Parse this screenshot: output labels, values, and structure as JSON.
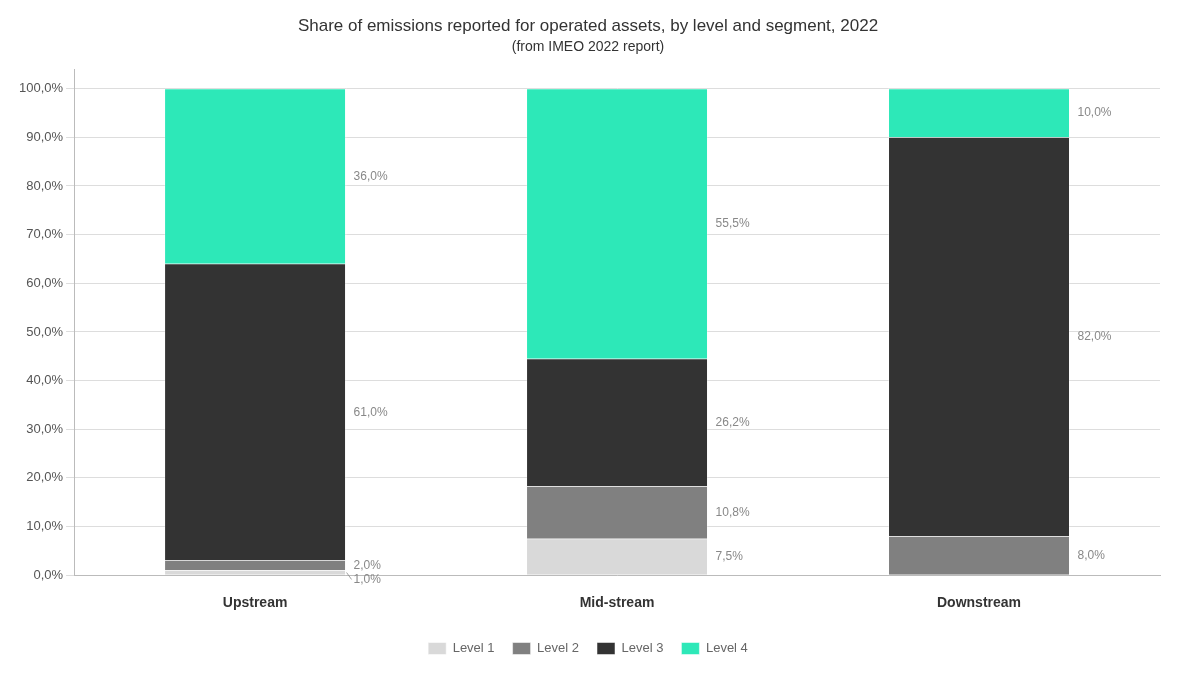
{
  "chart_data": {
    "type": "bar",
    "title": "Share of emissions reported for operated assets, by level and segment, 2022",
    "subtitle": "(from IMEO 2022 report)",
    "categories": [
      "Upstream",
      "Mid-stream",
      "Downstream"
    ],
    "stacked": true,
    "series": [
      {
        "name": "Level 1",
        "color": "#d9d9d9",
        "values": [
          1.0,
          7.5,
          0.0
        ],
        "value_labels": [
          "1,0%",
          "7,5%",
          null
        ]
      },
      {
        "name": "Level 2",
        "color": "#808080",
        "values": [
          2.0,
          10.8,
          8.0
        ],
        "value_labels": [
          "2,0%",
          "10,8%",
          "8,0%"
        ]
      },
      {
        "name": "Level 3",
        "color": "#333333",
        "values": [
          61.0,
          26.2,
          82.0
        ],
        "value_labels": [
          "61,0%",
          "26,2%",
          "82,0%"
        ]
      },
      {
        "name": "Level 4",
        "color": "#2de8b8",
        "values": [
          36.0,
          55.5,
          10.0
        ],
        "value_labels": [
          "36,0%",
          "55,5%",
          "10,0%"
        ]
      }
    ],
    "ylim": [
      0,
      104
    ],
    "yticks": [
      {
        "value": 0,
        "label": "0,0%"
      },
      {
        "value": 10,
        "label": "10,0%"
      },
      {
        "value": 20,
        "label": "20,0%"
      },
      {
        "value": 30,
        "label": "30,0%"
      },
      {
        "value": 40,
        "label": "40,0%"
      },
      {
        "value": 50,
        "label": "50,0%"
      },
      {
        "value": 60,
        "label": "60,0%"
      },
      {
        "value": 70,
        "label": "70,0%"
      },
      {
        "value": 80,
        "label": "80,0%"
      },
      {
        "value": 90,
        "label": "90,0%"
      },
      {
        "value": 100,
        "label": "100,0%"
      }
    ],
    "grid": true,
    "legend": "bottom",
    "data_labels": true
  }
}
